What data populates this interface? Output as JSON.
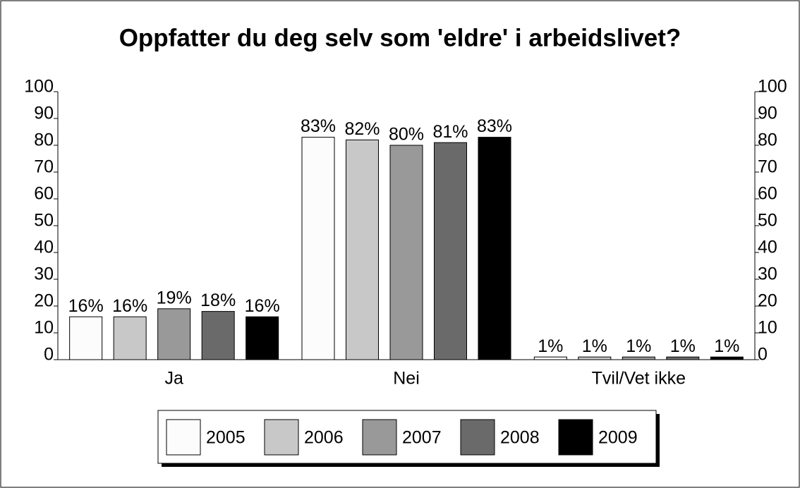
{
  "chart_data": {
    "type": "bar",
    "title": "Oppfatter du deg selv som 'eldre' i arbeidslivet?",
    "categories": [
      "Ja",
      "Nei",
      "Tvil/Vet ikke"
    ],
    "series": [
      {
        "name": "2005",
        "color": "#fcfcfc",
        "values": [
          16,
          83,
          1
        ],
        "value_labels": [
          "16%",
          "83%",
          "1%"
        ]
      },
      {
        "name": "2006",
        "color": "#c8c8c8",
        "values": [
          16,
          82,
          1
        ],
        "value_labels": [
          "16%",
          "82%",
          "1%"
        ]
      },
      {
        "name": "2007",
        "color": "#999999",
        "values": [
          19,
          80,
          1
        ],
        "value_labels": [
          "19%",
          "80%",
          "1%"
        ]
      },
      {
        "name": "2008",
        "color": "#6a6a6a",
        "values": [
          18,
          81,
          1
        ],
        "value_labels": [
          "18%",
          "81%",
          "1%"
        ]
      },
      {
        "name": "2009",
        "color": "#000000",
        "values": [
          16,
          83,
          1
        ],
        "value_labels": [
          "16%",
          "83%",
          "1%"
        ]
      }
    ],
    "ylim": [
      0,
      100
    ],
    "yticks": [
      0,
      10,
      20,
      30,
      40,
      50,
      60,
      70,
      80,
      90,
      100
    ],
    "y2lim": [
      0,
      100
    ],
    "y2ticks": [
      0,
      10,
      20,
      30,
      40,
      50,
      60,
      70,
      80,
      90,
      100
    ],
    "legend": "bottom"
  }
}
